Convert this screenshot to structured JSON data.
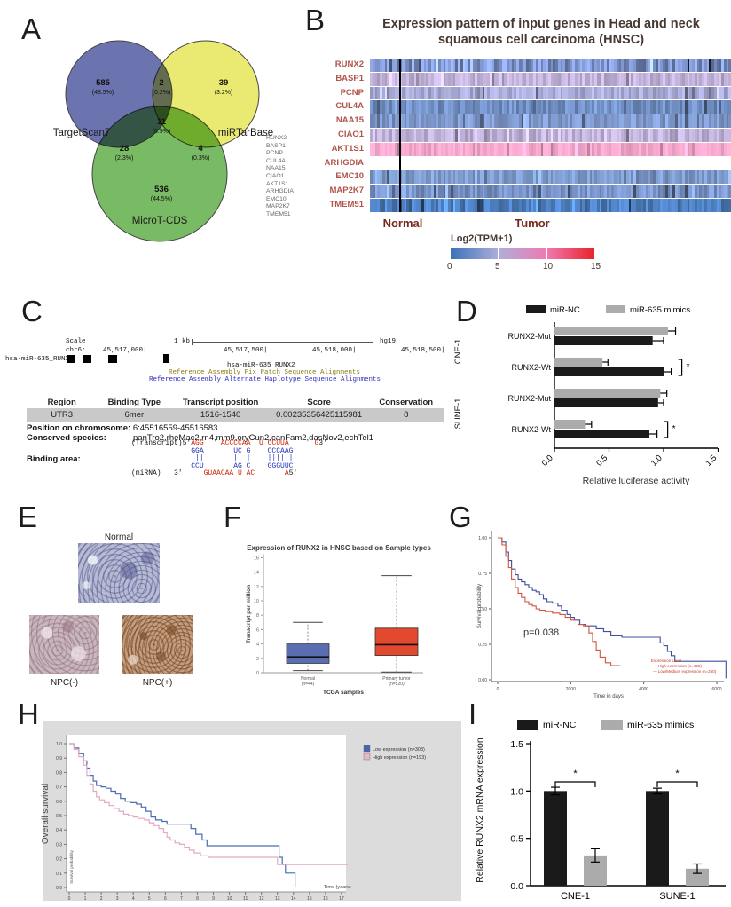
{
  "figure": {
    "panel_labels": {
      "a": "A",
      "b": "B",
      "c": "C",
      "d": "D",
      "e": "E",
      "f": "F",
      "g": "G",
      "h": "H",
      "i": "I"
    }
  },
  "venn": {
    "sets": [
      {
        "name": "TargetScan7",
        "count": "585",
        "pct": "(48.5%)"
      },
      {
        "name": "miRTarBase",
        "count": "39",
        "pct": "(3.2%)"
      },
      {
        "name": "MicroT-CDS",
        "count": "536",
        "pct": "(44.5%)"
      }
    ],
    "overlaps": {
      "ts_mtb_count": "2",
      "ts_mtb_pct": "(0.2%)",
      "ts_mt_count": "28",
      "ts_mt_pct": "(2.3%)",
      "mtb_mt_count": "4",
      "mtb_mt_pct": "(0.3%)",
      "all_count": "11",
      "all_pct": "(0.9%)"
    },
    "colors": {
      "targetscan": "#5f68a9",
      "mirtarbase": "#e9e967",
      "microt": "#6db457"
    },
    "gene_list": [
      "RUNX2",
      "BASP1",
      "PCNP",
      "CUL4A",
      "NAA15",
      "CIAO1",
      "AKT1S1",
      "ARHGDIA",
      "EMC10",
      "MAP2K7",
      "TMEM51"
    ]
  },
  "heatmap": {
    "title_line1": "Expression pattern of input genes in Head and neck",
    "title_line2": "squamous cell carcinoma (HNSC)",
    "rows": [
      {
        "gene": "RUNX2",
        "color": "#7e93cb",
        "var": 0.3
      },
      {
        "gene": "BASP1",
        "color": "#c2b3da",
        "var": 0.14
      },
      {
        "gene": "PCNP",
        "color": "#a9abd8",
        "var": 0.16
      },
      {
        "gene": "CUL4A",
        "color": "#7291c6",
        "var": 0.18
      },
      {
        "gene": "NAA15",
        "color": "#8099cd",
        "var": 0.16
      },
      {
        "gene": "CIAO1",
        "color": "#bfb2d9",
        "var": 0.14
      },
      {
        "gene": "AKT1S1",
        "color": "#f4a7cb",
        "var": 0.1
      },
      {
        "gene": "ARHGDIA",
        "color": null,
        "var": 0
      },
      {
        "gene": "EMC10",
        "color": "#7e9bcd",
        "var": 0.16
      },
      {
        "gene": "MAP2K7",
        "color": "#7b95ca",
        "var": 0.18
      },
      {
        "gene": "TMEM51",
        "color": "#4e80c1",
        "var": 0.22
      }
    ],
    "group_normal": "Normal",
    "group_tumor": "Tumor",
    "legend_title": "Log2(TPM+1)",
    "legend_ticks": [
      "0",
      "5",
      "10",
      "15"
    ],
    "legend_gradient": [
      "#3a72b9",
      "#aeaeda",
      "#ef7ab1",
      "#e8242b"
    ]
  },
  "genome": {
    "scale_label": "Scale",
    "chr_label": "chr6:",
    "kb_label": "1 kb",
    "build": "hg19",
    "coords": [
      "45,517,000|",
      "45,517,500|",
      "45,518,000|",
      "45,518,500|"
    ],
    "track_label": "hsa-miR-635_RUNX2",
    "feature_label": "hsa-miR-635_RUNX2",
    "note_patch": "Reference Assembly Fix Patch Sequence Alignments",
    "note_haplotype": "Reference Assembly Alternate Haplotype Sequence Alignments"
  },
  "binding": {
    "headers": [
      "Region",
      "Binding Type",
      "Transcript position",
      "Score",
      "Conservation"
    ],
    "row": [
      "UTR3",
      "6mer",
      "1516-1540",
      "0.00235356425115981",
      "8"
    ],
    "position_label": "Position on chromosome:",
    "position_value": "6:45516559-45516583",
    "species_label": "Conserved species:",
    "species_value": "panTro2,rheMac2,rn4,mm9,oryCun2,canFam2,dasNov2,echTel1",
    "area_label": "Binding area:",
    "lines": [
      [
        {
          "t": "(Transcript)5'",
          "c": "black"
        },
        {
          "t": "AGG    ACCCCAA  U CCUUA      G",
          "c": "red"
        },
        {
          "t": "3'",
          "c": "black"
        }
      ],
      [
        {
          "t": "              GGA       UC G    CCCAAG",
          "c": "blue"
        }
      ],
      [
        {
          "t": "              |||       || |    ||||||",
          "c": "blue"
        }
      ],
      [
        {
          "t": "              CCU       AG C    GGGUUC",
          "c": "blue"
        }
      ],
      [
        {
          "t": "(miRNA)   3'  ",
          "c": "black"
        },
        {
          "t": "   GUAACAA U AC       A",
          "c": "red"
        },
        {
          "t": "5'",
          "c": "black"
        }
      ]
    ]
  },
  "ihc": {
    "normal_label": "Normal",
    "npc_neg_label": "NPC(-)",
    "npc_pos_label": "NPC(+)"
  },
  "chart_data": [
    {
      "id": "luciferase",
      "type": "bar",
      "orientation": "horizontal",
      "legend": [
        {
          "label": "miR-NC",
          "color": "#1a1a1a"
        },
        {
          "label": "miR-635 mimics",
          "color": "#ababab"
        }
      ],
      "xlabel": "Relative luciferase activity",
      "xticks": [
        "0.0",
        "0.5",
        "1.0",
        "1.5"
      ],
      "xlim": [
        0,
        1.5
      ],
      "groups": [
        {
          "cell": "CNE-1",
          "rows": [
            {
              "label": "RUNX2-Mut",
              "mimics": 1.04,
              "mimics_err": 0.07,
              "nc": 0.9,
              "nc_err": 0.1,
              "sig": null
            },
            {
              "label": "RUNX2-Wt",
              "mimics": 0.44,
              "mimics_err": 0.05,
              "nc": 1.0,
              "nc_err": 0.07,
              "sig": "*"
            }
          ]
        },
        {
          "cell": "SUNE-1",
          "rows": [
            {
              "label": "RUNX2-Mut",
              "mimics": 0.97,
              "mimics_err": 0.06,
              "nc": 0.95,
              "nc_err": 0.05,
              "sig": null
            },
            {
              "label": "RUNX2-Wt",
              "mimics": 0.28,
              "mimics_err": 0.06,
              "nc": 0.87,
              "nc_err": 0.07,
              "sig": "*"
            }
          ]
        }
      ]
    },
    {
      "id": "runx2_box",
      "type": "box",
      "title": "Expression of RUNX2 in HNSC based on Sample types",
      "ylabel": "Transcript per million",
      "xlabel": "TCGA samples",
      "yticks": [
        0,
        2,
        4,
        6,
        8,
        10,
        12,
        14,
        16
      ],
      "ylim": [
        0,
        16
      ],
      "boxes": [
        {
          "label1": "Normal",
          "label2": "(n=44)",
          "color": "#5a6db0",
          "lo": 0.3,
          "q1": 1.3,
          "med": 2.2,
          "q3": 4.0,
          "hi": 7.0
        },
        {
          "label1": "Primary tumor",
          "label2": "(n=520)",
          "color": "#e2492f",
          "lo": 0.1,
          "q1": 2.4,
          "med": 3.9,
          "q3": 6.2,
          "hi": 13.5
        }
      ]
    },
    {
      "id": "km_days",
      "type": "line",
      "ylabel": "Survival probability",
      "xlabel": "Time in days",
      "pvalue": "p=0.038",
      "yticks": [
        "1.00",
        "0.75",
        "0.50",
        "0.25",
        "0.00"
      ],
      "xticks": [
        "0",
        "2000",
        "4000",
        "6000"
      ],
      "xlim": [
        0,
        6400
      ],
      "legend_title": "Expression Level",
      "legend": [
        {
          "label": "High expression (n=128)",
          "color": "#d2543f"
        },
        {
          "label": "Low/Medium expression (n=260)",
          "color": "#3c4f9e"
        }
      ],
      "series": [
        {
          "name": "low_medium",
          "color": "#3c4f9e",
          "points": [
            [
              0,
              1.0
            ],
            [
              120,
              0.97
            ],
            [
              220,
              0.9
            ],
            [
              300,
              0.84
            ],
            [
              380,
              0.78
            ],
            [
              480,
              0.74
            ],
            [
              560,
              0.71
            ],
            [
              650,
              0.69
            ],
            [
              750,
              0.67
            ],
            [
              850,
              0.65
            ],
            [
              950,
              0.63
            ],
            [
              1050,
              0.62
            ],
            [
              1150,
              0.6
            ],
            [
              1250,
              0.57
            ],
            [
              1350,
              0.55
            ],
            [
              1500,
              0.54
            ],
            [
              1650,
              0.52
            ],
            [
              1750,
              0.49
            ],
            [
              1900,
              0.46
            ],
            [
              2000,
              0.44
            ],
            [
              2100,
              0.42
            ],
            [
              2250,
              0.39
            ],
            [
              2400,
              0.38
            ],
            [
              2700,
              0.36
            ],
            [
              2900,
              0.34
            ],
            [
              3100,
              0.31
            ],
            [
              3400,
              0.3
            ],
            [
              4300,
              0.3
            ],
            [
              4450,
              0.26
            ],
            [
              4550,
              0.24
            ],
            [
              4650,
              0.2
            ],
            [
              4750,
              0.17
            ],
            [
              4850,
              0.13
            ],
            [
              5600,
              0.13
            ],
            [
              6200,
              0.13
            ],
            [
              6250,
              0.01
            ]
          ]
        },
        {
          "name": "high",
          "color": "#d2543f",
          "points": [
            [
              0,
              1.0
            ],
            [
              120,
              0.95
            ],
            [
              220,
              0.87
            ],
            [
              300,
              0.79
            ],
            [
              380,
              0.71
            ],
            [
              480,
              0.65
            ],
            [
              560,
              0.61
            ],
            [
              650,
              0.58
            ],
            [
              750,
              0.55
            ],
            [
              850,
              0.53
            ],
            [
              950,
              0.52
            ],
            [
              1050,
              0.5
            ],
            [
              1150,
              0.49
            ],
            [
              1300,
              0.48
            ],
            [
              1500,
              0.47
            ],
            [
              1700,
              0.46
            ],
            [
              1850,
              0.44
            ],
            [
              2000,
              0.42
            ],
            [
              2200,
              0.39
            ],
            [
              2350,
              0.38
            ],
            [
              2500,
              0.33
            ],
            [
              2600,
              0.27
            ],
            [
              2700,
              0.21
            ],
            [
              2800,
              0.16
            ],
            [
              2950,
              0.12
            ],
            [
              3100,
              0.1
            ],
            [
              3350,
              0.1
            ]
          ]
        }
      ]
    },
    {
      "id": "km_years",
      "type": "line",
      "ylabel_outer": "Overall survival",
      "ylabel_inner": "Survival probability",
      "xlabel": "Time (years)",
      "yticks": [
        "1.0",
        "0.9",
        "0.8",
        "0.7",
        "0.6",
        "0.5",
        "0.4",
        "0.3",
        "0.2",
        "0.1",
        "0.0"
      ],
      "xticks": [
        "0",
        "1",
        "2",
        "3",
        "4",
        "5",
        "6",
        "7",
        "8",
        "9",
        "10",
        "11",
        "12",
        "13",
        "14",
        "15",
        "16",
        "17"
      ],
      "xlim": [
        0,
        17.4
      ],
      "legend": [
        {
          "label": "Low expression (n=308)",
          "color": "#4466b0"
        },
        {
          "label": "High expression (n=193)",
          "color": "#e8b6cc"
        }
      ],
      "series": [
        {
          "name": "low",
          "color": "#4a6cb3",
          "points": [
            [
              0,
              1.0
            ],
            [
              0.3,
              0.97
            ],
            [
              0.6,
              0.93
            ],
            [
              0.9,
              0.88
            ],
            [
              1.1,
              0.83
            ],
            [
              1.3,
              0.78
            ],
            [
              1.5,
              0.74
            ],
            [
              1.7,
              0.71
            ],
            [
              2.0,
              0.7
            ],
            [
              2.3,
              0.69
            ],
            [
              2.6,
              0.67
            ],
            [
              2.9,
              0.65
            ],
            [
              3.2,
              0.62
            ],
            [
              3.5,
              0.6
            ],
            [
              3.8,
              0.59
            ],
            [
              4.2,
              0.58
            ],
            [
              4.5,
              0.56
            ],
            [
              4.8,
              0.53
            ],
            [
              5.1,
              0.49
            ],
            [
              5.4,
              0.47
            ],
            [
              5.8,
              0.46
            ],
            [
              6.1,
              0.44
            ],
            [
              7.3,
              0.44
            ],
            [
              7.6,
              0.41
            ],
            [
              7.9,
              0.37
            ],
            [
              8.3,
              0.33
            ],
            [
              8.6,
              0.29
            ],
            [
              12.9,
              0.29
            ],
            [
              13.1,
              0.21
            ],
            [
              13.3,
              0.16
            ],
            [
              13.5,
              0.1
            ],
            [
              14.0,
              0.1
            ],
            [
              14.1,
              0.0
            ]
          ]
        },
        {
          "name": "high",
          "color": "#e2a9c3",
          "points": [
            [
              0,
              1.0
            ],
            [
              0.3,
              0.96
            ],
            [
              0.6,
              0.91
            ],
            [
              0.9,
              0.85
            ],
            [
              1.1,
              0.78
            ],
            [
              1.3,
              0.72
            ],
            [
              1.5,
              0.67
            ],
            [
              1.7,
              0.63
            ],
            [
              1.9,
              0.61
            ],
            [
              2.2,
              0.59
            ],
            [
              2.5,
              0.57
            ],
            [
              2.8,
              0.55
            ],
            [
              3.1,
              0.53
            ],
            [
              3.4,
              0.51
            ],
            [
              3.7,
              0.5
            ],
            [
              4.0,
              0.49
            ],
            [
              4.3,
              0.48
            ],
            [
              4.7,
              0.47
            ],
            [
              5.0,
              0.45
            ],
            [
              5.3,
              0.43
            ],
            [
              5.6,
              0.41
            ],
            [
              5.9,
              0.38
            ],
            [
              6.1,
              0.35
            ],
            [
              6.3,
              0.33
            ],
            [
              6.6,
              0.31
            ],
            [
              6.9,
              0.3
            ],
            [
              7.2,
              0.28
            ],
            [
              7.5,
              0.26
            ],
            [
              7.8,
              0.24
            ],
            [
              8.2,
              0.22
            ],
            [
              8.7,
              0.21
            ],
            [
              12.8,
              0.21
            ],
            [
              13.0,
              0.16
            ],
            [
              17.4,
              0.16
            ]
          ]
        }
      ]
    },
    {
      "id": "mrna",
      "type": "bar",
      "orientation": "vertical",
      "ylabel": "Relative RUNX2 mRNA expression",
      "yticks": [
        "0.0",
        "0.5",
        "1.0",
        "1.5"
      ],
      "ylim": [
        0,
        1.5
      ],
      "legend": [
        {
          "label": "miR-NC",
          "color": "#1a1a1a"
        },
        {
          "label": "miR-635 mimics",
          "color": "#ababab"
        }
      ],
      "categories": [
        "CNE-1",
        "SUNE-1"
      ],
      "series": [
        {
          "name": "miR-NC",
          "color": "#1a1a1a",
          "values": [
            1.0,
            1.0
          ],
          "errors": [
            0.04,
            0.03
          ]
        },
        {
          "name": "miR-635 mimics",
          "color": "#ababab",
          "values": [
            0.32,
            0.18
          ],
          "errors": [
            0.07,
            0.05
          ]
        }
      ],
      "sig": [
        "*",
        "*"
      ]
    }
  ]
}
